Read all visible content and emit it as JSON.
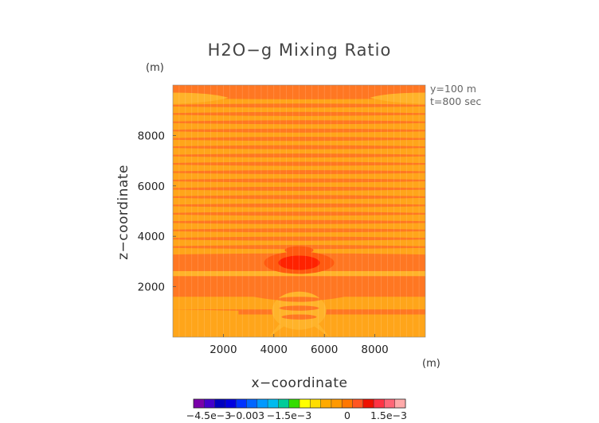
{
  "chart_data": {
    "type": "heatmap",
    "title": "H2O−g Mixing Ratio",
    "xlabel": "x−coordinate",
    "ylabel": "z−coordinate",
    "x_unit": "(m)",
    "y_unit": "(m)",
    "xlim": [
      0,
      10000
    ],
    "ylim": [
      0,
      10000
    ],
    "x_ticks": [
      2000,
      4000,
      6000,
      8000
    ],
    "y_ticks": [
      2000,
      4000,
      6000,
      8000
    ],
    "annotations": [
      "y=100  m",
      "t=800 sec"
    ],
    "colorbar": {
      "tick_labels": [
        "−4.5e−3",
        "−0.003",
        "−1.5e−3",
        "0",
        "1.5e−3"
      ],
      "colors": [
        "#7a00aa",
        "#4400cc",
        "#0000c0",
        "#0000e0",
        "#0033ff",
        "#0066ff",
        "#0099ff",
        "#00bbee",
        "#00cc99",
        "#33dd00",
        "#ffff00",
        "#ffdd00",
        "#ffaa00",
        "#ff9900",
        "#ff7700",
        "#ff5522",
        "#ee1100",
        "#ff3344",
        "#ff6677",
        "#ffaaaa"
      ]
    },
    "field_colors": {
      "background": "#ff7722",
      "band": "#ffa51a",
      "band_light": "#ffb32a",
      "peak": "#ff2200",
      "peak_mid": "#ff5a10"
    }
  }
}
